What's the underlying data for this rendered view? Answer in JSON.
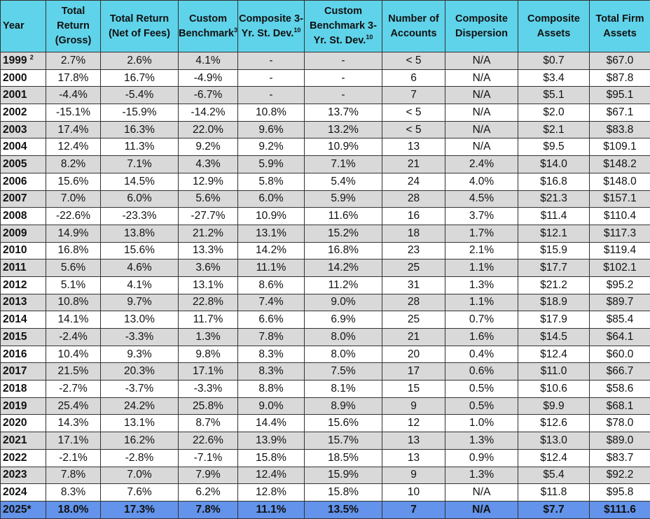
{
  "table": {
    "headers": [
      {
        "text": "Year",
        "sup": ""
      },
      {
        "text": "Total Return (Gross)",
        "sup": ""
      },
      {
        "text": "Total Return (Net of Fees)",
        "sup": ""
      },
      {
        "text": "Custom Benchmark",
        "sup": "3"
      },
      {
        "text": "Composite 3-Yr. St. Dev.",
        "sup": "10"
      },
      {
        "text": "Custom Benchmark 3-Yr. St. Dev.",
        "sup": "10"
      },
      {
        "text": "Number of Accounts",
        "sup": ""
      },
      {
        "text": "Composite Dispersion",
        "sup": ""
      },
      {
        "text": "Composite Assets",
        "sup": ""
      },
      {
        "text": "Total Firm Assets",
        "sup": ""
      }
    ],
    "rows": [
      {
        "year": "1999",
        "sup": "2",
        "cells": [
          "2.7%",
          "2.6%",
          "4.1%",
          "-",
          "-",
          "< 5",
          "N/A",
          "$0.7",
          "$67.0"
        ]
      },
      {
        "year": "2000",
        "sup": "",
        "cells": [
          "17.8%",
          "16.7%",
          "-4.9%",
          "-",
          "-",
          "6",
          "N/A",
          "$3.4",
          "$87.8"
        ]
      },
      {
        "year": "2001",
        "sup": "",
        "cells": [
          "-4.4%",
          "-5.4%",
          "-6.7%",
          "-",
          "-",
          "7",
          "N/A",
          "$5.1",
          "$95.1"
        ]
      },
      {
        "year": "2002",
        "sup": "",
        "cells": [
          "-15.1%",
          "-15.9%",
          "-14.2%",
          "10.8%",
          "13.7%",
          "< 5",
          "N/A",
          "$2.0",
          "$67.1"
        ]
      },
      {
        "year": "2003",
        "sup": "",
        "cells": [
          "17.4%",
          "16.3%",
          "22.0%",
          "9.6%",
          "13.2%",
          "< 5",
          "N/A",
          "$2.1",
          "$83.8"
        ]
      },
      {
        "year": "2004",
        "sup": "",
        "cells": [
          "12.4%",
          "11.3%",
          "9.2%",
          "9.2%",
          "10.9%",
          "13",
          "N/A",
          "$9.5",
          "$109.1"
        ]
      },
      {
        "year": "2005",
        "sup": "",
        "cells": [
          "8.2%",
          "7.1%",
          "4.3%",
          "5.9%",
          "7.1%",
          "21",
          "2.4%",
          "$14.0",
          "$148.2"
        ]
      },
      {
        "year": "2006",
        "sup": "",
        "cells": [
          "15.6%",
          "14.5%",
          "12.9%",
          "5.8%",
          "5.4%",
          "24",
          "4.0%",
          "$16.8",
          "$148.0"
        ]
      },
      {
        "year": "2007",
        "sup": "",
        "cells": [
          "7.0%",
          "6.0%",
          "5.6%",
          "6.0%",
          "5.9%",
          "28",
          "4.5%",
          "$21.3",
          "$157.1"
        ]
      },
      {
        "year": "2008",
        "sup": "",
        "cells": [
          "-22.6%",
          "-23.3%",
          "-27.7%",
          "10.9%",
          "11.6%",
          "16",
          "3.7%",
          "$11.4",
          "$110.4"
        ]
      },
      {
        "year": "2009",
        "sup": "",
        "cells": [
          "14.9%",
          "13.8%",
          "21.2%",
          "13.1%",
          "15.2%",
          "18",
          "1.7%",
          "$12.1",
          "$117.3"
        ]
      },
      {
        "year": "2010",
        "sup": "",
        "cells": [
          "16.8%",
          "15.6%",
          "13.3%",
          "14.2%",
          "16.8%",
          "23",
          "2.1%",
          "$15.9",
          "$119.4"
        ]
      },
      {
        "year": "2011",
        "sup": "",
        "cells": [
          "5.6%",
          "4.6%",
          "3.6%",
          "11.1%",
          "14.2%",
          "25",
          "1.1%",
          "$17.7",
          "$102.1"
        ]
      },
      {
        "year": "2012",
        "sup": "",
        "cells": [
          "5.1%",
          "4.1%",
          "13.1%",
          "8.6%",
          "11.2%",
          "31",
          "1.3%",
          "$21.2",
          "$95.2"
        ]
      },
      {
        "year": "2013",
        "sup": "",
        "cells": [
          "10.8%",
          "9.7%",
          "22.8%",
          "7.4%",
          "9.0%",
          "28",
          "1.1%",
          "$18.9",
          "$89.7"
        ]
      },
      {
        "year": "2014",
        "sup": "",
        "cells": [
          "14.1%",
          "13.0%",
          "11.7%",
          "6.6%",
          "6.9%",
          "25",
          "0.7%",
          "$17.9",
          "$85.4"
        ]
      },
      {
        "year": "2015",
        "sup": "",
        "cells": [
          "-2.4%",
          "-3.3%",
          "1.3%",
          "7.8%",
          "8.0%",
          "21",
          "1.6%",
          "$14.5",
          "$64.1"
        ]
      },
      {
        "year": "2016",
        "sup": "",
        "cells": [
          "10.4%",
          "9.3%",
          "9.8%",
          "8.3%",
          "8.0%",
          "20",
          "0.4%",
          "$12.4",
          "$60.0"
        ]
      },
      {
        "year": "2017",
        "sup": "",
        "cells": [
          "21.5%",
          "20.3%",
          "17.1%",
          "8.3%",
          "7.5%",
          "17",
          "0.6%",
          "$11.0",
          "$66.7"
        ]
      },
      {
        "year": "2018",
        "sup": "",
        "cells": [
          "-2.7%",
          "-3.7%",
          "-3.3%",
          "8.8%",
          "8.1%",
          "15",
          "0.5%",
          "$10.6",
          "$58.6"
        ]
      },
      {
        "year": "2019",
        "sup": "",
        "cells": [
          "25.4%",
          "24.2%",
          "25.8%",
          "9.0%",
          "8.9%",
          "9",
          "0.5%",
          "$9.9",
          "$68.1"
        ]
      },
      {
        "year": "2020",
        "sup": "",
        "cells": [
          "14.3%",
          "13.1%",
          "8.7%",
          "14.4%",
          "15.6%",
          "12",
          "1.0%",
          "$12.6",
          "$78.0"
        ]
      },
      {
        "year": "2021",
        "sup": "",
        "cells": [
          "17.1%",
          "16.2%",
          "22.6%",
          "13.9%",
          "15.7%",
          "13",
          "1.3%",
          "$13.0",
          "$89.0"
        ]
      },
      {
        "year": "2022",
        "sup": "",
        "cells": [
          "-2.1%",
          "-2.8%",
          "-7.1%",
          "15.8%",
          "18.5%",
          "13",
          "0.9%",
          "$12.4",
          "$83.7"
        ]
      },
      {
        "year": "2023",
        "sup": "",
        "cells": [
          "7.8%",
          "7.0%",
          "7.9%",
          "12.4%",
          "15.9%",
          "9",
          "1.3%",
          "$5.4",
          "$92.2"
        ]
      },
      {
        "year": "2024",
        "sup": "",
        "cells": [
          "8.3%",
          "7.6%",
          "6.2%",
          "12.8%",
          "15.8%",
          "10",
          "N/A",
          "$11.8",
          "$95.8"
        ]
      },
      {
        "year": "2025*",
        "sup": "",
        "cells": [
          "18.0%",
          "17.3%",
          "7.8%",
          "11.1%",
          "13.5%",
          "7",
          "N/A",
          "$7.7",
          "$111.6"
        ]
      }
    ]
  },
  "colors": {
    "header": "#5fd3ea",
    "stripe": "#d9d9d9",
    "highlight": "#6393ea"
  }
}
